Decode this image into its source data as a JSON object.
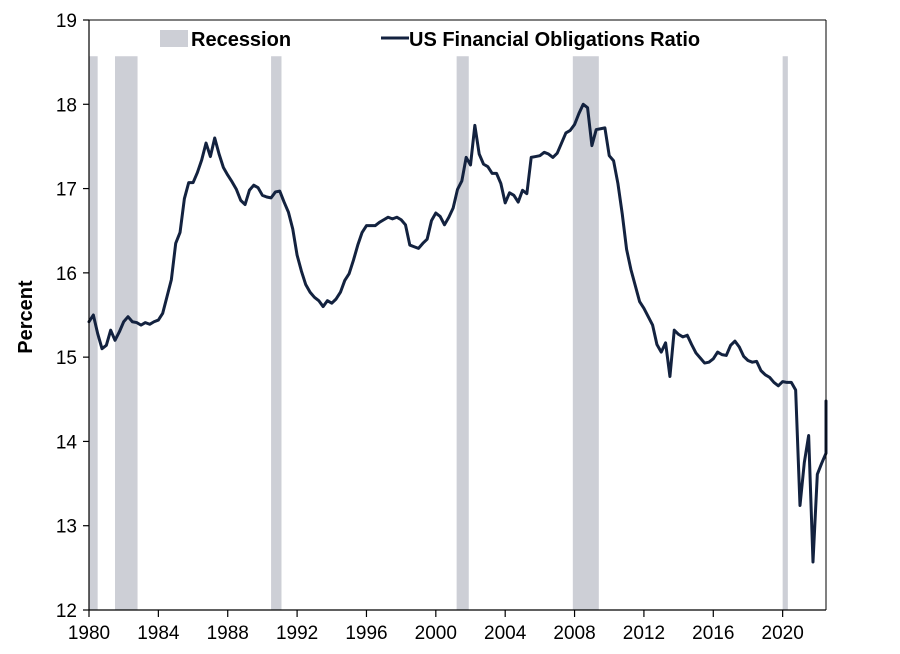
{
  "chart_data": {
    "type": "line",
    "title": "",
    "xlabel": "",
    "ylabel": "Percent",
    "xlim": [
      1980,
      2022.5
    ],
    "ylim": [
      12,
      19
    ],
    "x_ticks": [
      1980,
      1984,
      1988,
      1992,
      1996,
      2000,
      2004,
      2008,
      2012,
      2016,
      2020
    ],
    "y_ticks": [
      12,
      13,
      14,
      15,
      16,
      17,
      18,
      19
    ],
    "grid": false,
    "legend_position": "top",
    "legend": [
      {
        "label": "Recession",
        "kind": "shaded-band",
        "color": "#cdcfd6"
      },
      {
        "label": "US Financial Obligations Ratio",
        "kind": "line",
        "color": "#13223f"
      }
    ],
    "recessions": [
      {
        "start": 1980.0,
        "end": 1980.5
      },
      {
        "start": 1981.5,
        "end": 1982.8
      },
      {
        "start": 1990.5,
        "end": 1991.1
      },
      {
        "start": 2001.2,
        "end": 2001.9
      },
      {
        "start": 2007.9,
        "end": 2009.4
      },
      {
        "start": 2020.0,
        "end": 2020.3
      }
    ],
    "series": [
      {
        "name": "US Financial Obligations Ratio",
        "color": "#13223f",
        "points": [
          [
            1980.0,
            15.42
          ],
          [
            1980.25,
            15.5
          ],
          [
            1980.5,
            15.28
          ],
          [
            1980.75,
            15.1
          ],
          [
            1981.0,
            15.14
          ],
          [
            1981.25,
            15.32
          ],
          [
            1981.5,
            15.2
          ],
          [
            1981.75,
            15.3
          ],
          [
            1982.0,
            15.42
          ],
          [
            1982.25,
            15.48
          ],
          [
            1982.5,
            15.42
          ],
          [
            1982.75,
            15.41
          ],
          [
            1983.0,
            15.38
          ],
          [
            1983.25,
            15.41
          ],
          [
            1983.5,
            15.39
          ],
          [
            1983.75,
            15.42
          ],
          [
            1984.0,
            15.44
          ],
          [
            1984.25,
            15.52
          ],
          [
            1984.5,
            15.72
          ],
          [
            1984.75,
            15.92
          ],
          [
            1985.0,
            16.35
          ],
          [
            1985.25,
            16.48
          ],
          [
            1985.5,
            16.88
          ],
          [
            1985.75,
            17.07
          ],
          [
            1986.0,
            17.07
          ],
          [
            1986.25,
            17.19
          ],
          [
            1986.5,
            17.34
          ],
          [
            1986.75,
            17.54
          ],
          [
            1987.0,
            17.38
          ],
          [
            1987.25,
            17.6
          ],
          [
            1987.5,
            17.41
          ],
          [
            1987.75,
            17.25
          ],
          [
            1988.0,
            17.16
          ],
          [
            1988.25,
            17.08
          ],
          [
            1988.5,
            16.99
          ],
          [
            1988.75,
            16.86
          ],
          [
            1989.0,
            16.81
          ],
          [
            1989.25,
            16.98
          ],
          [
            1989.5,
            17.04
          ],
          [
            1989.75,
            17.01
          ],
          [
            1990.0,
            16.92
          ],
          [
            1990.25,
            16.9
          ],
          [
            1990.5,
            16.89
          ],
          [
            1990.75,
            16.96
          ],
          [
            1991.0,
            16.97
          ],
          [
            1991.25,
            16.84
          ],
          [
            1991.5,
            16.72
          ],
          [
            1991.75,
            16.52
          ],
          [
            1992.0,
            16.21
          ],
          [
            1992.25,
            16.02
          ],
          [
            1992.5,
            15.86
          ],
          [
            1992.75,
            15.77
          ],
          [
            1993.0,
            15.71
          ],
          [
            1993.25,
            15.67
          ],
          [
            1993.5,
            15.6
          ],
          [
            1993.75,
            15.67
          ],
          [
            1994.0,
            15.64
          ],
          [
            1994.25,
            15.69
          ],
          [
            1994.5,
            15.77
          ],
          [
            1994.75,
            15.91
          ],
          [
            1995.0,
            15.99
          ],
          [
            1995.25,
            16.15
          ],
          [
            1995.5,
            16.33
          ],
          [
            1995.75,
            16.48
          ],
          [
            1996.0,
            16.56
          ],
          [
            1996.25,
            16.56
          ],
          [
            1996.5,
            16.56
          ],
          [
            1996.75,
            16.6
          ],
          [
            1997.0,
            16.63
          ],
          [
            1997.25,
            16.66
          ],
          [
            1997.5,
            16.64
          ],
          [
            1997.75,
            16.66
          ],
          [
            1998.0,
            16.63
          ],
          [
            1998.25,
            16.57
          ],
          [
            1998.5,
            16.33
          ],
          [
            1998.75,
            16.31
          ],
          [
            1999.0,
            16.29
          ],
          [
            1999.25,
            16.35
          ],
          [
            1999.5,
            16.4
          ],
          [
            1999.75,
            16.62
          ],
          [
            2000.0,
            16.71
          ],
          [
            2000.25,
            16.67
          ],
          [
            2000.5,
            16.57
          ],
          [
            2000.75,
            16.66
          ],
          [
            2001.0,
            16.77
          ],
          [
            2001.25,
            16.99
          ],
          [
            2001.5,
            17.09
          ],
          [
            2001.75,
            17.37
          ],
          [
            2002.0,
            17.28
          ],
          [
            2002.25,
            17.75
          ],
          [
            2002.5,
            17.41
          ],
          [
            2002.75,
            17.29
          ],
          [
            2003.0,
            17.26
          ],
          [
            2003.25,
            17.18
          ],
          [
            2003.5,
            17.18
          ],
          [
            2003.75,
            17.06
          ],
          [
            2004.0,
            16.83
          ],
          [
            2004.25,
            16.95
          ],
          [
            2004.5,
            16.92
          ],
          [
            2004.75,
            16.84
          ],
          [
            2005.0,
            16.98
          ],
          [
            2005.25,
            16.94
          ],
          [
            2005.5,
            17.37
          ],
          [
            2005.75,
            17.38
          ],
          [
            2006.0,
            17.39
          ],
          [
            2006.25,
            17.43
          ],
          [
            2006.5,
            17.41
          ],
          [
            2006.75,
            17.37
          ],
          [
            2007.0,
            17.42
          ],
          [
            2007.25,
            17.54
          ],
          [
            2007.5,
            17.66
          ],
          [
            2007.75,
            17.69
          ],
          [
            2008.0,
            17.76
          ],
          [
            2008.25,
            17.89
          ],
          [
            2008.5,
            18.0
          ],
          [
            2008.75,
            17.96
          ],
          [
            2009.0,
            17.51
          ],
          [
            2009.25,
            17.7
          ],
          [
            2009.5,
            17.71
          ],
          [
            2009.75,
            17.72
          ],
          [
            2010.0,
            17.39
          ],
          [
            2010.25,
            17.33
          ],
          [
            2010.5,
            17.06
          ],
          [
            2010.75,
            16.7
          ],
          [
            2011.0,
            16.28
          ],
          [
            2011.25,
            16.04
          ],
          [
            2011.5,
            15.85
          ],
          [
            2011.75,
            15.66
          ],
          [
            2012.0,
            15.58
          ],
          [
            2012.25,
            15.48
          ],
          [
            2012.5,
            15.38
          ],
          [
            2012.75,
            15.15
          ],
          [
            2013.0,
            15.06
          ],
          [
            2013.25,
            15.17
          ],
          [
            2013.5,
            14.77
          ],
          [
            2013.75,
            15.32
          ],
          [
            2014.0,
            15.27
          ],
          [
            2014.25,
            15.24
          ],
          [
            2014.5,
            15.26
          ],
          [
            2014.75,
            15.15
          ],
          [
            2015.0,
            15.05
          ],
          [
            2015.25,
            14.99
          ],
          [
            2015.5,
            14.93
          ],
          [
            2015.75,
            14.94
          ],
          [
            2016.0,
            14.98
          ],
          [
            2016.25,
            15.06
          ],
          [
            2016.5,
            15.03
          ],
          [
            2016.75,
            15.02
          ],
          [
            2017.0,
            15.14
          ],
          [
            2017.25,
            15.19
          ],
          [
            2017.5,
            15.12
          ],
          [
            2017.75,
            15.01
          ],
          [
            2018.0,
            14.96
          ],
          [
            2018.25,
            14.94
          ],
          [
            2018.5,
            14.95
          ],
          [
            2018.75,
            14.84
          ],
          [
            2019.0,
            14.79
          ],
          [
            2019.25,
            14.76
          ],
          [
            2019.5,
            14.7
          ],
          [
            2019.75,
            14.66
          ],
          [
            2020.0,
            14.71
          ],
          [
            2020.25,
            14.7
          ],
          [
            2020.5,
            14.7
          ],
          [
            2020.75,
            14.61
          ],
          [
            2021.0,
            13.24
          ],
          [
            2021.25,
            13.75
          ],
          [
            2021.5,
            14.07
          ],
          [
            2021.75,
            12.57
          ],
          [
            2022.0,
            13.61
          ],
          [
            2022.25,
            13.74
          ],
          [
            2022.5,
            13.86
          ],
          [
            2022.75,
            14.25
          ],
          [
            2023.0,
            14.31
          ],
          [
            2023.25,
            14.48
          ]
        ]
      }
    ]
  }
}
